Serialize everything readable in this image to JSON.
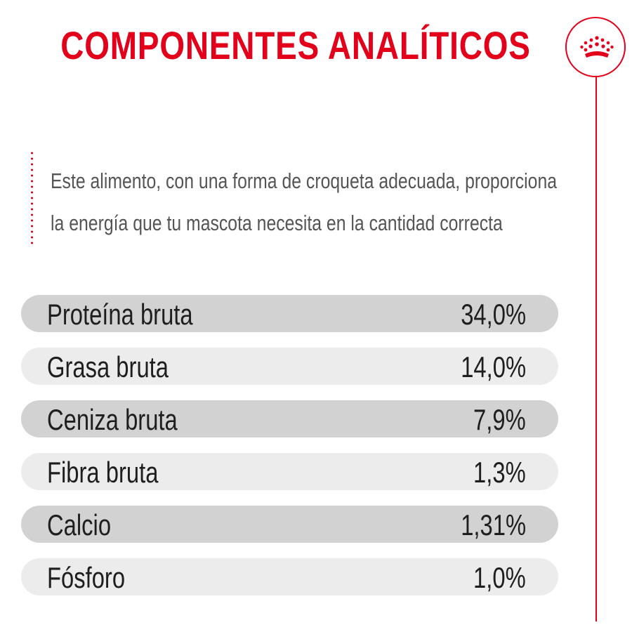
{
  "title": "COMPONENTES ANALÍTICOS",
  "description": {
    "line1": "Este alimento, con una forma de croqueta adecuada, proporciona",
    "line2": "la energía que tu mascota necesita en la cantidad correcta"
  },
  "logo": {
    "icon": "crown-icon"
  },
  "colors": {
    "accent": "#e2001a",
    "row_dark": "#d2d2d2",
    "row_light": "#ececec",
    "text": "#1e1e1e",
    "description_text": "#555555"
  },
  "components": [
    {
      "name": "Proteína bruta",
      "value": "34,0%"
    },
    {
      "name": "Grasa bruta",
      "value": "14,0%"
    },
    {
      "name": "Ceniza bruta",
      "value": "7,9%"
    },
    {
      "name": "Fibra bruta",
      "value": "1,3%"
    },
    {
      "name": "Calcio",
      "value": "1,31%"
    },
    {
      "name": "Fósforo",
      "value": "1,0%"
    }
  ]
}
